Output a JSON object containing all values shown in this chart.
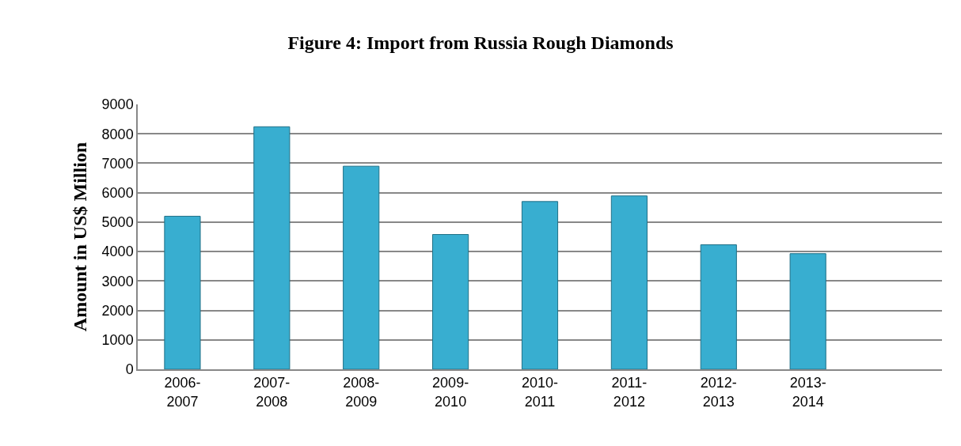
{
  "chart_data": {
    "type": "bar",
    "title": "Figure 4: Import from Russia Rough Diamonds",
    "ylabel": "Amount in US$ Million",
    "categories": [
      "2006-2007",
      "2007-2008",
      "2008-2009",
      "2009-2010",
      "2010-2011",
      "2011-2012",
      "2012-2013",
      "2013-2014",
      null
    ],
    "values": [
      5200,
      8240,
      6900,
      4580,
      5700,
      5890,
      4230,
      3930,
      null
    ],
    "color": "#38aed0",
    "ylim": [
      0,
      9000
    ],
    "yticks": [
      0,
      1000,
      2000,
      3000,
      4000,
      5000,
      6000,
      7000,
      8000,
      9000
    ],
    "grid": "y"
  }
}
